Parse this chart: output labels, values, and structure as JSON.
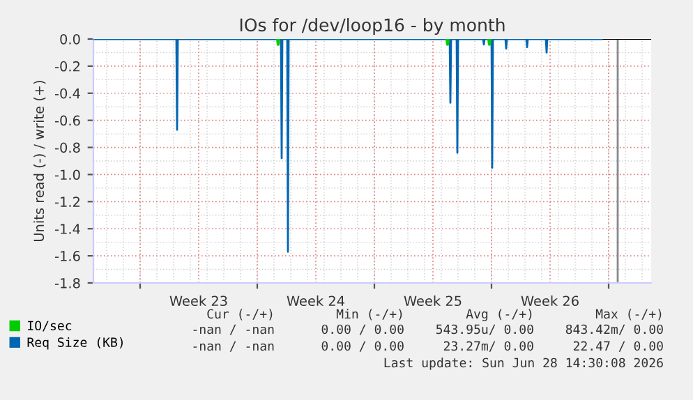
{
  "chart_data": {
    "type": "line",
    "title": "IOs for /dev/loop16 - by month",
    "ylabel": "Units read (-) / write (+)",
    "xlim": [
      "2026-05-29T05:00",
      "2026-07-01T13:00"
    ],
    "xticks": [
      {
        "value": "2026-06-01",
        "label": null
      },
      {
        "value": "2026-06-04T12:00",
        "label": "Week 23"
      },
      {
        "value": "2026-06-08",
        "label": null
      },
      {
        "value": "2026-06-11T12:00",
        "label": "Week 24"
      },
      {
        "value": "2026-06-15",
        "label": null
      },
      {
        "value": "2026-06-18T12:00",
        "label": "Week 25"
      },
      {
        "value": "2026-06-22",
        "label": null
      },
      {
        "value": "2026-06-25T12:00",
        "label": "Week 26"
      },
      {
        "value": "2026-06-29",
        "label": null
      }
    ],
    "ylim": [
      -1.8,
      0.0
    ],
    "yticks": [
      {
        "value": 0,
        "label": "0.0"
      },
      {
        "value": -0.2,
        "label": "-0.2"
      },
      {
        "value": -0.4,
        "label": "-0.4"
      },
      {
        "value": -0.6,
        "label": "-0.6"
      },
      {
        "value": -0.8,
        "label": "-0.8"
      },
      {
        "value": -1.0,
        "label": "-1.0"
      },
      {
        "value": -1.2,
        "label": "-1.2"
      },
      {
        "value": -1.4,
        "label": "-1.4"
      },
      {
        "value": -1.6,
        "label": "-1.6"
      },
      {
        "value": -1.8,
        "label": "-1.8"
      }
    ],
    "grid": true,
    "legend": "bottom",
    "series": [
      {
        "name": "IO/sec",
        "color": "#00cc00",
        "x": [
          "2026-06-09T05:00",
          "2026-06-09T06:00",
          "2026-06-09T07:00",
          "2026-06-12T00:00",
          "2026-06-19T08:00",
          "2026-06-19T09:00",
          "2026-06-19T10:00",
          "2026-06-20T12:00",
          "2026-06-21T20:00",
          "2026-06-21T21:00",
          "2026-06-21T22:00"
        ],
        "values": [
          0,
          -0.04,
          0,
          null,
          0,
          -0.04,
          0,
          null,
          0,
          -0.04,
          0
        ]
      },
      {
        "name": "Req Size (KB)",
        "color": "#0066b3",
        "x": [
          "2026-05-29T06:00",
          "2026-06-03T04:00",
          "2026-06-03T05:00",
          "2026-06-03T06:00",
          "2026-06-09T10:00",
          "2026-06-09T11:00",
          "2026-06-09T12:00",
          "2026-06-09T19:00",
          "2026-06-09T20:00",
          "2026-06-09T21:00",
          "2026-06-19T12:00",
          "2026-06-19T13:00",
          "2026-06-19T14:00",
          "2026-06-19T22:00",
          "2026-06-19T23:00",
          "2026-06-20T00:00",
          "2026-06-21T12:00",
          "2026-06-21T13:00",
          "2026-06-21T14:00",
          "2026-06-22T00:00",
          "2026-06-22T01:00",
          "2026-06-22T02:00",
          "2026-06-22T20:00",
          "2026-06-22T21:00",
          "2026-06-22T22:00",
          "2026-06-24T02:00",
          "2026-06-24T03:00",
          "2026-06-24T04:00",
          "2026-06-25T06:00",
          "2026-06-25T07:00",
          "2026-06-25T08:00",
          "2026-06-28T14:00"
        ],
        "values": [
          0,
          0,
          -0.67,
          0,
          0,
          -0.88,
          0,
          0,
          -1.57,
          0,
          0,
          -0.47,
          0,
          0,
          -0.84,
          0,
          0,
          -0.04,
          0,
          0,
          -0.95,
          0,
          0,
          -0.07,
          0,
          0,
          -0.06,
          0,
          0,
          -0.1,
          0,
          0
        ]
      }
    ],
    "ref_lines": [
      {
        "axis": "x",
        "value": "2026-06-29T13:00",
        "color": "#888888"
      }
    ],
    "annotations": [
      "Cur (-/+)",
      "Min (-/+)",
      "Avg (-/+)",
      "Max (-/+)",
      "-nan / -nan",
      "0.00 / 0.00",
      "543.95u/ 0.00",
      "843.42m/ 0.00",
      "-nan / -nan",
      "0.00 / 0.00",
      "23.27m/ 0.00",
      "22.47 / 0.00",
      "Last update: Sun Jun 28 14:30:08 2026"
    ]
  }
}
